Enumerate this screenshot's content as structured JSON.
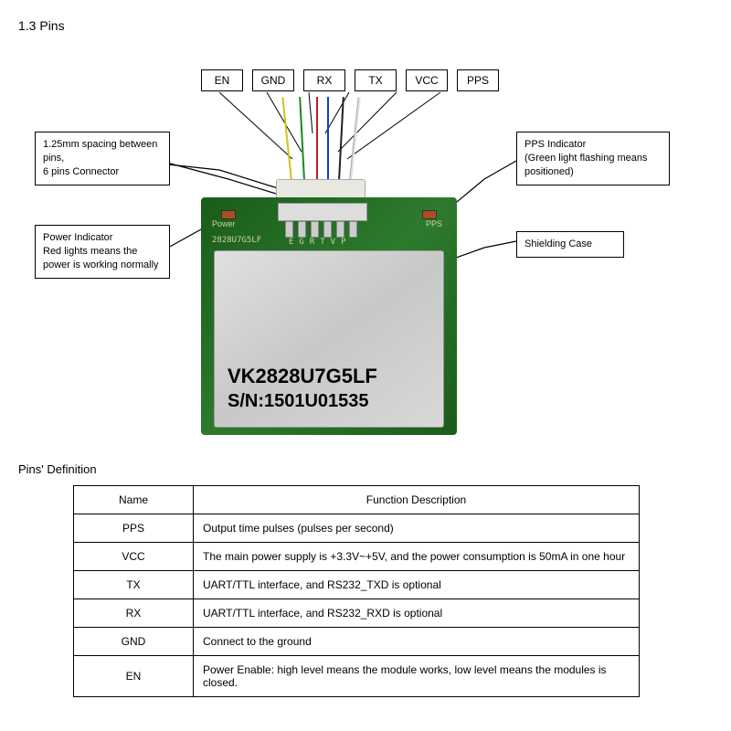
{
  "section_title": "1.3 Pins",
  "pin_labels": [
    "EN",
    "GND",
    "RX",
    "TX",
    "VCC",
    "PPS"
  ],
  "wire_colors": [
    "#d4c020",
    "#1a8a1a",
    "#c02020",
    "#1040c0",
    "#202020",
    "#e0e0e0"
  ],
  "pcb": {
    "color": "#2d7a2d",
    "power_label": "Power",
    "partno": "2828U7G5LF",
    "pin_letters": "EGRTVP",
    "pps_label": "PPS",
    "shield_line1": "VK2828U7G5LF",
    "shield_line2": "S/N:1501U01535"
  },
  "callouts": {
    "spacing": "1.25mm spacing between pins,\n6 pins Connector",
    "power": "Power Indicator\nRed lights means the power is working normally",
    "pps": "PPS Indicator\n(Green light flashing means positioned)",
    "shield": "Shielding Case"
  },
  "table_title": "Pins' Definition",
  "table": {
    "columns": [
      "Name",
      "Function Description"
    ],
    "rows": [
      [
        "PPS",
        "Output time pulses (pulses per second)"
      ],
      [
        "VCC",
        "The main power supply is +3.3V~+5V, and the power consumption is 50mA in one hour"
      ],
      [
        "TX",
        "UART/TTL interface, and RS232_TXD is optional"
      ],
      [
        "RX",
        "UART/TTL interface, and RS232_RXD is optional"
      ],
      [
        "GND",
        "Connect to the ground"
      ],
      [
        "EN",
        "Power Enable: high level means the module works, low level means the modules is closed."
      ]
    ]
  }
}
